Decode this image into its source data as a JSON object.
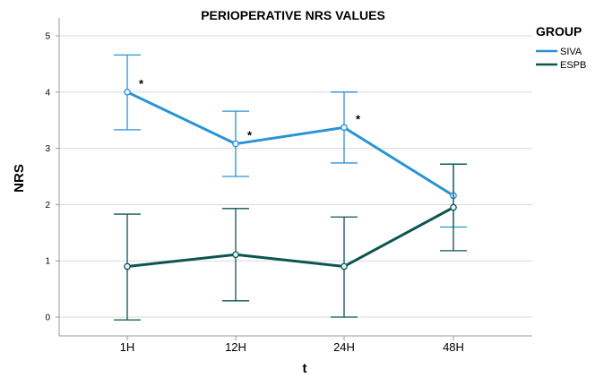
{
  "chart_data": {
    "type": "line",
    "title": "PERIOPERATIVE NRS VALUES",
    "xlabel": "t",
    "ylabel": "NRS",
    "categories": [
      "1H",
      "12H",
      "24H",
      "48H"
    ],
    "ylim": [
      0,
      5
    ],
    "yticks": [
      "0",
      "1",
      "2",
      "3",
      "4",
      "5"
    ],
    "grid": "horizontal",
    "legend": {
      "title": "GROUP",
      "placement": "top-right"
    },
    "series": [
      {
        "name": "SIVA",
        "color": "#2a93d5",
        "values": [
          4.0,
          3.08,
          3.37,
          2.16
        ],
        "error_low": [
          3.33,
          2.5,
          2.74,
          1.6
        ],
        "error_high": [
          4.66,
          3.66,
          4.0,
          2.72
        ]
      },
      {
        "name": "ESPB",
        "color": "#0d5550",
        "values": [
          0.9,
          1.11,
          0.9,
          1.95
        ],
        "error_low": [
          -0.05,
          0.29,
          0.0,
          1.18
        ],
        "error_high": [
          1.83,
          1.93,
          1.78,
          2.72
        ]
      }
    ],
    "annotations": [
      {
        "text": "*",
        "category": "1H"
      },
      {
        "text": "*",
        "category": "12H"
      },
      {
        "text": "*",
        "category": "24H"
      }
    ]
  }
}
